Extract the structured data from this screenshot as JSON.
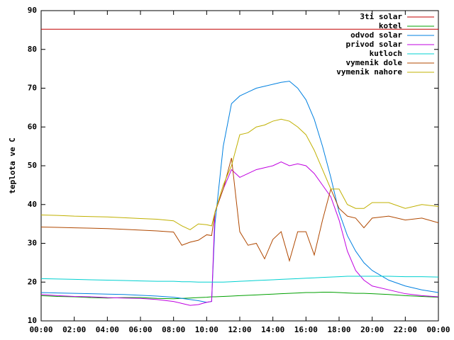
{
  "chart_data": {
    "type": "line",
    "ylabel": "teplota ve C",
    "x": [
      0,
      1,
      2,
      3,
      4,
      5,
      6,
      7,
      8,
      8.5,
      9,
      9.5,
      10,
      10.3,
      10.5,
      11,
      11.5,
      12,
      12.5,
      13,
      13.5,
      14,
      14.5,
      15,
      15.5,
      16,
      16.5,
      17,
      17.5,
      18,
      18.5,
      19,
      19.5,
      20,
      21,
      22,
      23,
      24
    ],
    "xlim": [
      0,
      24
    ],
    "xticks": [
      {
        "value": 0,
        "label": "00:00"
      },
      {
        "value": 2,
        "label": "02:00"
      },
      {
        "value": 4,
        "label": "04:00"
      },
      {
        "value": 6,
        "label": "06:00"
      },
      {
        "value": 8,
        "label": "08:00"
      },
      {
        "value": 10,
        "label": "10:00"
      },
      {
        "value": 12,
        "label": "12:00"
      },
      {
        "value": 14,
        "label": "14:00"
      },
      {
        "value": 16,
        "label": "16:00"
      },
      {
        "value": 18,
        "label": "18:00"
      },
      {
        "value": 20,
        "label": "20:00"
      },
      {
        "value": 22,
        "label": "22:00"
      },
      {
        "value": 24,
        "label": "00:00"
      }
    ],
    "ylim": [
      10,
      90
    ],
    "yticks": [
      10,
      20,
      30,
      40,
      50,
      60,
      70,
      80,
      90
    ],
    "legend": "top-right",
    "series": [
      {
        "name": "3ti solar",
        "color": "#c00000",
        "values": [
          85.2,
          85.2,
          85.2,
          85.2,
          85.2,
          85.2,
          85.2,
          85.2,
          85.2,
          85.2,
          85.2,
          85.2,
          85.2,
          85.2,
          85.2,
          85.2,
          85.2,
          85.2,
          85.2,
          85.2,
          85.2,
          85.2,
          85.2,
          85.2,
          85.2,
          85.2,
          85.2,
          85.2,
          85.2,
          85.2,
          85.2,
          85.2,
          85.2,
          85.2,
          85.2,
          85.2,
          85.2,
          85.2
        ]
      },
      {
        "name": "kotel",
        "color": "#00a000",
        "values": [
          16.5,
          16.3,
          16.2,
          16,
          15.9,
          16,
          16,
          15.8,
          15.7,
          15.8,
          15.9,
          16,
          16.1,
          16.2,
          16.2,
          16.3,
          16.4,
          16.5,
          16.6,
          16.7,
          16.8,
          16.9,
          17,
          17.1,
          17.2,
          17.3,
          17.3,
          17.4,
          17.4,
          17.3,
          17.2,
          17.1,
          17.1,
          17,
          16.8,
          16.5,
          16.3,
          16.1
        ]
      },
      {
        "name": "odvod solar",
        "color": "#0080e0",
        "values": [
          17.3,
          17.2,
          17.1,
          17,
          16.9,
          16.8,
          16.6,
          16.4,
          16.1,
          15.8,
          15.5,
          15.2,
          14.8,
          15,
          35,
          55,
          66,
          68,
          69,
          70,
          70.5,
          71,
          71.5,
          71.8,
          70,
          67,
          62,
          55,
          47,
          38,
          32,
          28,
          25,
          23,
          20.5,
          19,
          18,
          17.3
        ]
      },
      {
        "name": "privod solar",
        "color": "#c000e0",
        "values": [
          16.8,
          16.5,
          16.3,
          16.2,
          16,
          15.9,
          15.8,
          15.5,
          15,
          14.5,
          14,
          14.2,
          14.8,
          15,
          38,
          44,
          49,
          47,
          48,
          49,
          49.5,
          50,
          51,
          50,
          50.5,
          50,
          48,
          45,
          42,
          36,
          28,
          23,
          20.5,
          19,
          18,
          17,
          16.5,
          16.2
        ]
      },
      {
        "name": "kutloch",
        "color": "#00d0d0",
        "values": [
          20.9,
          20.8,
          20.7,
          20.6,
          20.5,
          20.4,
          20.3,
          20.2,
          20.2,
          20.1,
          20.1,
          20,
          20,
          20,
          20,
          20,
          20.1,
          20.2,
          20.3,
          20.4,
          20.5,
          20.6,
          20.7,
          20.8,
          20.9,
          21,
          21.1,
          21.2,
          21.3,
          21.4,
          21.5,
          21.5,
          21.5,
          21.5,
          21.5,
          21.4,
          21.4,
          21.3
        ]
      },
      {
        "name": "vymenik dole",
        "color": "#b04800",
        "values": [
          34.2,
          34.1,
          34,
          33.9,
          33.8,
          33.6,
          33.4,
          33.2,
          32.9,
          29.5,
          30.3,
          30.8,
          32.2,
          32,
          38,
          44,
          52,
          33,
          29.5,
          30,
          26,
          31,
          33,
          25.5,
          33,
          33,
          27,
          36,
          44,
          39,
          37,
          36.5,
          34,
          36.5,
          37,
          36,
          36.5,
          35.3
        ]
      },
      {
        "name": "vymenik nahore",
        "color": "#c0b000",
        "values": [
          37.3,
          37.2,
          37,
          36.9,
          36.8,
          36.6,
          36.4,
          36.2,
          35.8,
          34.5,
          33.5,
          35,
          34.8,
          34.5,
          38,
          45,
          50,
          58,
          58.5,
          60,
          60.5,
          61.5,
          62,
          61.5,
          60,
          58,
          54,
          49,
          44,
          44,
          40,
          39,
          39,
          40.5,
          40.5,
          39,
          40,
          39.5
        ]
      }
    ]
  }
}
